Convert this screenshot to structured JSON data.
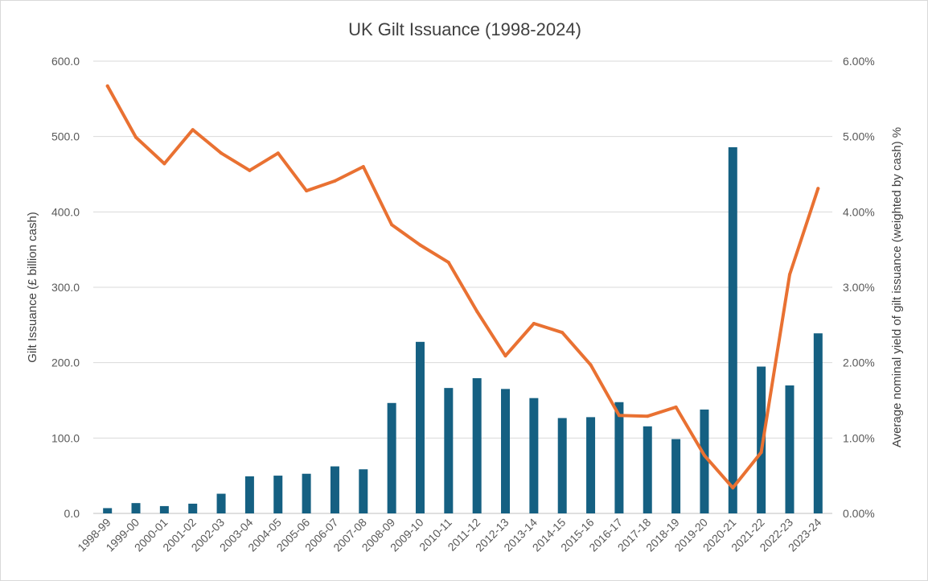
{
  "chart_data": {
    "type": "bar+line",
    "title": "UK Gilt Issuance (1998-2024)",
    "categories": [
      "1998-99",
      "1999-00",
      "2000-01",
      "2001-02",
      "2002-03",
      "2003-04",
      "2004-05",
      "2005-06",
      "2006-07",
      "2007-08",
      "2008-09",
      "2009-10",
      "2010-11",
      "2011-12",
      "2012-13",
      "2013-14",
      "2014-15",
      "2015-16",
      "2016-17",
      "2017-18",
      "2018-19",
      "2019-20",
      "2020-21",
      "2021-22",
      "2022-23",
      "2023-24"
    ],
    "series": [
      {
        "name": "Gilt Issuance (£ billion cash)",
        "type": "bar",
        "axis": "left",
        "color": "#156082",
        "values": [
          7.0,
          13.7,
          9.7,
          12.9,
          26.1,
          49.2,
          50.1,
          52.6,
          62.4,
          58.5,
          146.5,
          227.6,
          166.4,
          179.4,
          165.1,
          153.0,
          126.5,
          127.7,
          147.6,
          115.5,
          98.6,
          137.8,
          485.8,
          194.8,
          169.8,
          238.9
        ]
      },
      {
        "name": "Average nominal yield of gilt issuance (weighted by cash) %",
        "type": "line",
        "axis": "right",
        "color": "#E97132",
        "values": [
          5.67,
          4.99,
          4.64,
          5.09,
          4.78,
          4.55,
          4.78,
          4.28,
          4.41,
          4.6,
          3.83,
          3.56,
          3.33,
          2.68,
          2.09,
          2.52,
          2.4,
          1.97,
          1.3,
          1.29,
          1.41,
          0.77,
          0.34,
          0.81,
          3.17,
          4.31
        ]
      }
    ],
    "y_left": {
      "label": "Gilt Issuance (£ billion cash)",
      "min": 0,
      "max": 600,
      "ticks": [
        "0.0",
        "100.0",
        "200.0",
        "300.0",
        "400.0",
        "500.0",
        "600.0"
      ]
    },
    "y_right": {
      "label": "Average nominal yield of gilt issuance (weighted by cash) %",
      "min": 0,
      "max": 6,
      "ticks": [
        "0.00%",
        "1.00%",
        "2.00%",
        "3.00%",
        "4.00%",
        "5.00%",
        "6.00%"
      ]
    },
    "grid": true,
    "legend": "none"
  }
}
